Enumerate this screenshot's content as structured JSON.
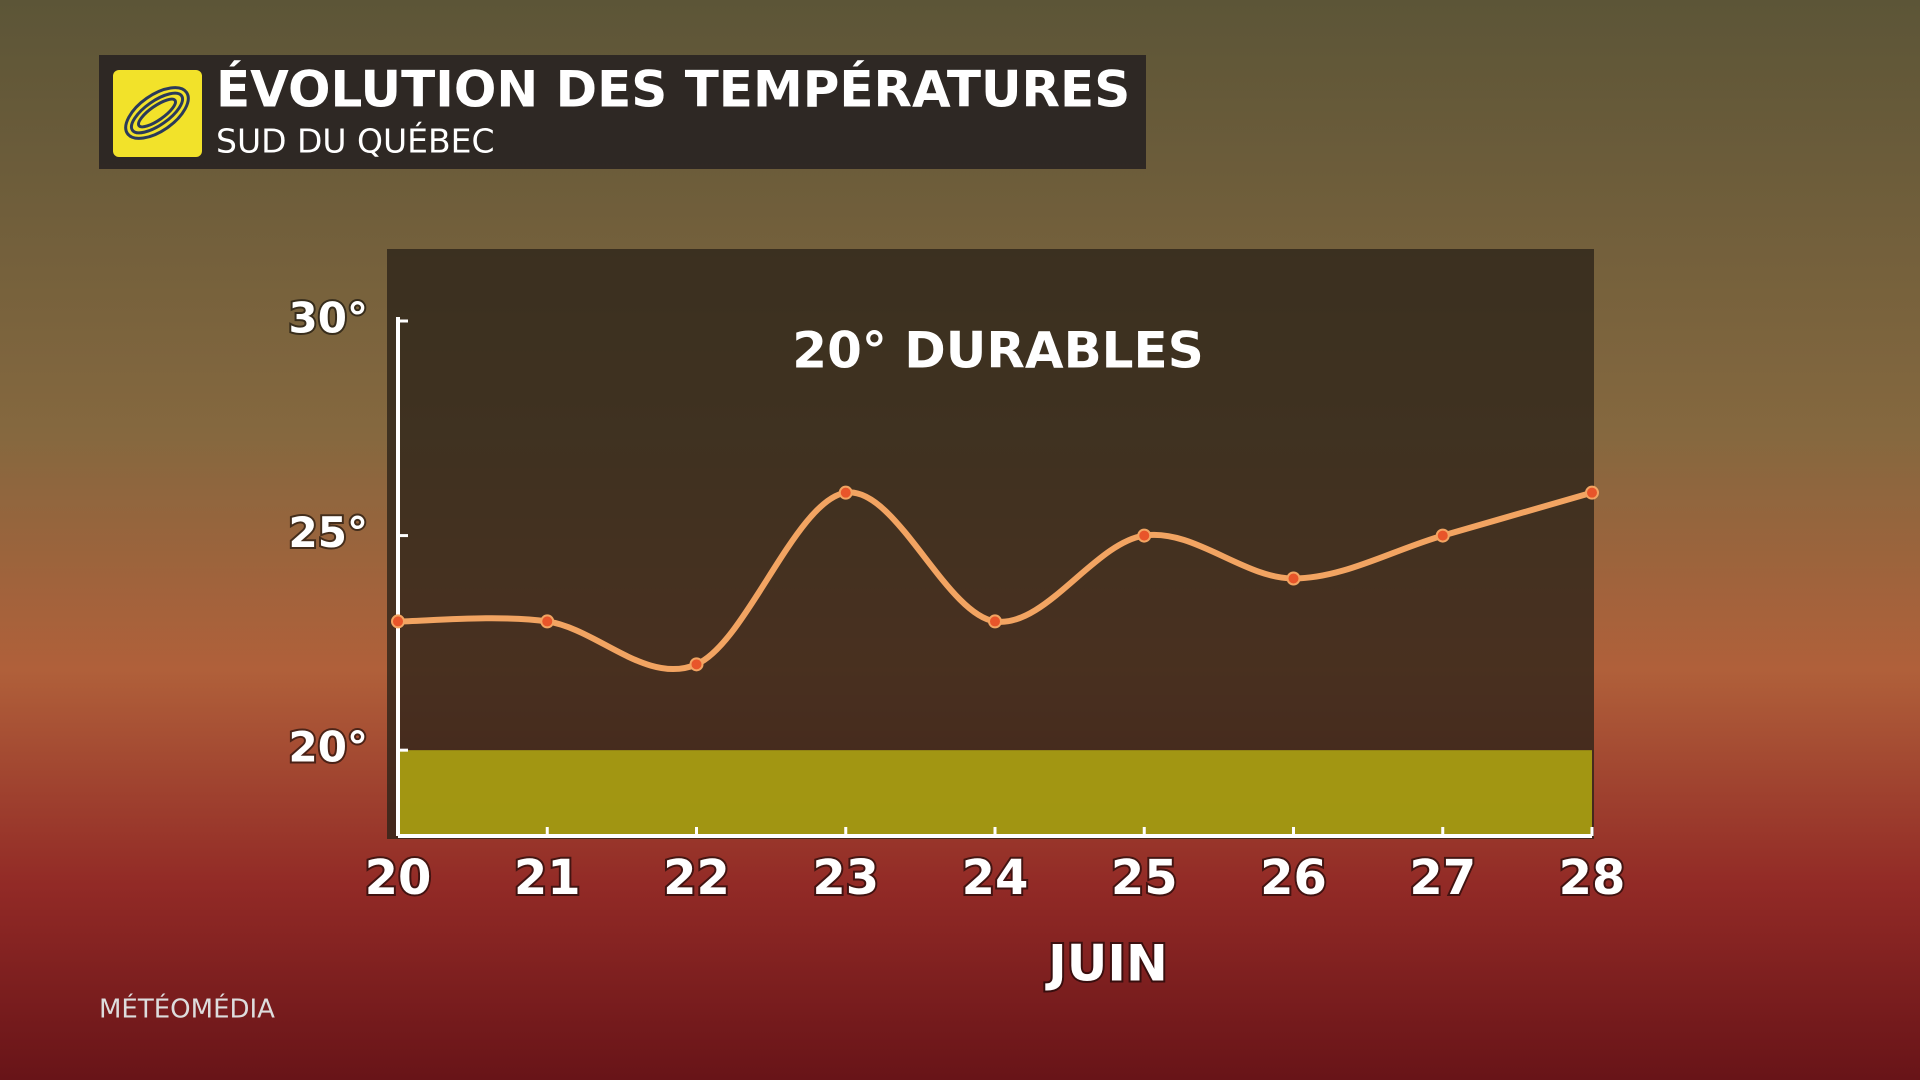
{
  "header": {
    "title": "ÉVOLUTION DES TEMPÉRATURES",
    "subtitle": "SUD DU QUÉBEC"
  },
  "brand": "MÉTÉOMÉDIA",
  "chart_data": {
    "type": "line",
    "annotation": "20° DURABLES",
    "x_label": "JUIN",
    "categories": [
      "20",
      "21",
      "22",
      "23",
      "24",
      "25",
      "26",
      "27",
      "28"
    ],
    "series": [
      {
        "color": "#f2a462",
        "values": [
          23,
          23,
          22,
          26,
          23,
          25,
          24,
          25,
          26
        ]
      }
    ],
    "ylim": [
      18,
      30
    ],
    "yticks": [
      {
        "value": 20,
        "label": "20°"
      },
      {
        "value": 25,
        "label": "25°"
      },
      {
        "value": 30,
        "label": "30°"
      }
    ],
    "band": {
      "range": [
        18,
        20
      ],
      "color": "#aca212"
    }
  }
}
